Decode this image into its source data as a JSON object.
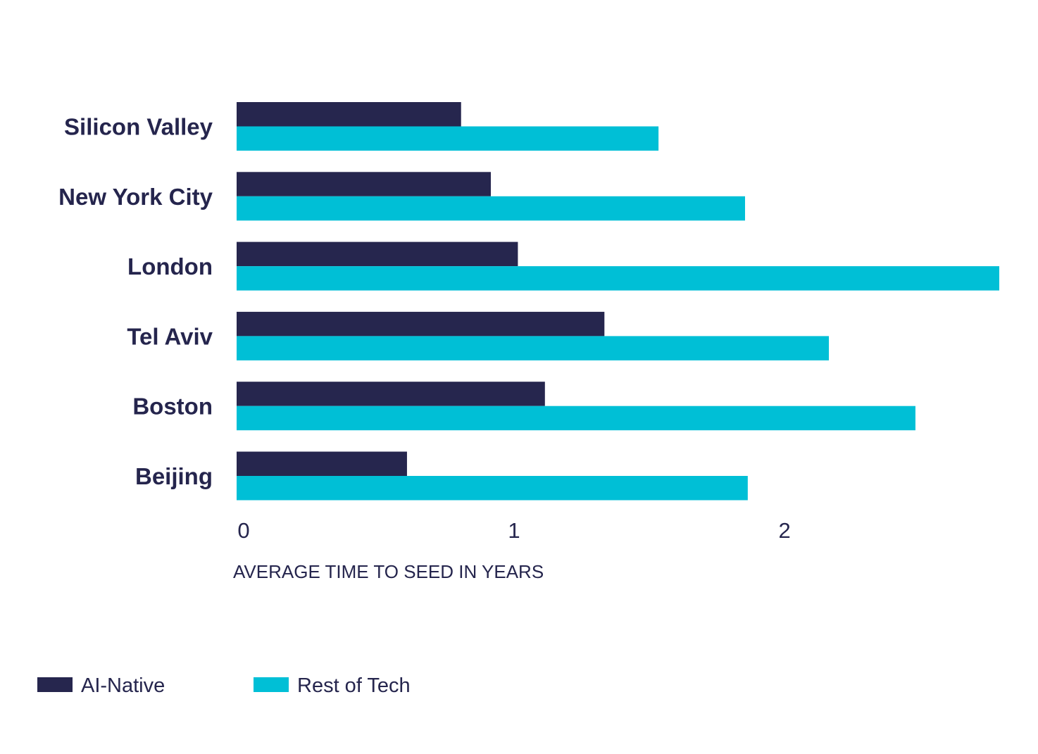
{
  "colors": {
    "ai_native": "#26264e",
    "rest_of_tech": "#00bfd6",
    "text": "#25254d"
  },
  "chart_data": {
    "type": "bar",
    "orientation": "horizontal",
    "categories": [
      "Silicon Valley",
      "New York City",
      "London",
      "Tel Aviv",
      "Boston",
      "Beijing"
    ],
    "series": [
      {
        "name": "AI-Native",
        "values": [
          0.83,
          0.94,
          1.04,
          1.36,
          1.14,
          0.63
        ]
      },
      {
        "name": "Rest of Tech",
        "values": [
          1.56,
          1.88,
          2.82,
          2.19,
          2.51,
          1.89
        ]
      }
    ],
    "xlabel": "AVERAGE TIME TO SEED IN YEARS",
    "xticks": [
      0,
      1,
      2
    ],
    "xlim": [
      0,
      2.82
    ],
    "legend_position": "bottom-left"
  }
}
